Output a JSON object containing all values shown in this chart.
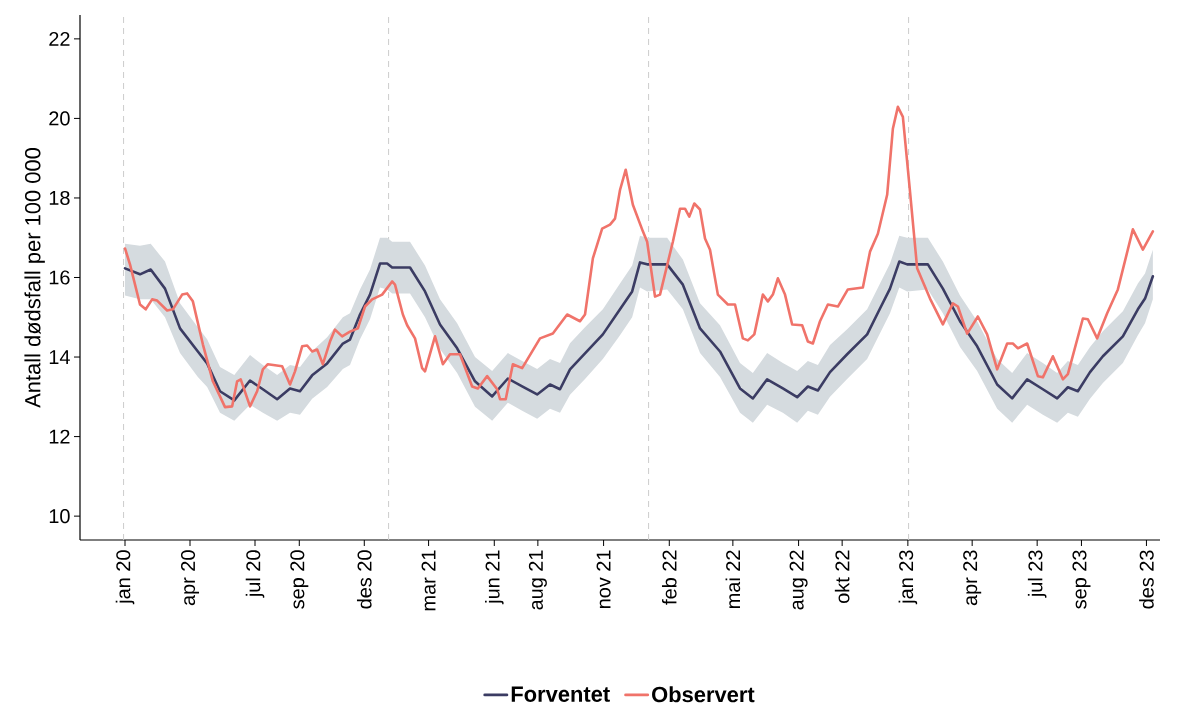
{
  "chart_data": {
    "type": "line",
    "ylabel": "Antall dødsfall per 100 000",
    "xlim": [
      "2019-10-30",
      "2023-12-20"
    ],
    "ylim": [
      9.4,
      22.6
    ],
    "yticks": [
      10,
      12,
      14,
      16,
      18,
      20,
      22
    ],
    "xticks": [
      {
        "value": "2020-01",
        "label": "jan 20"
      },
      {
        "value": "2020-04",
        "label": "apr 20"
      },
      {
        "value": "2020-07",
        "label": "jul 20"
      },
      {
        "value": "2020-09",
        "label": "sep 20"
      },
      {
        "value": "2020-12",
        "label": "des 20"
      },
      {
        "value": "2021-03",
        "label": "mar 21"
      },
      {
        "value": "2021-06",
        "label": "jun 21"
      },
      {
        "value": "2021-08",
        "label": "aug 21"
      },
      {
        "value": "2021-11",
        "label": "nov 21"
      },
      {
        "value": "2022-02",
        "label": "feb 22"
      },
      {
        "value": "2022-05",
        "label": "mai 22"
      },
      {
        "value": "2022-08",
        "label": "aug 22"
      },
      {
        "value": "2022-10",
        "label": "okt 22"
      },
      {
        "value": "2023-01",
        "label": "jan 23"
      },
      {
        "value": "2023-04",
        "label": "apr 23"
      },
      {
        "value": "2023-07",
        "label": "jul 23"
      },
      {
        "value": "2023-09",
        "label": "sep 23"
      },
      {
        "value": "2023-12",
        "label": "des 23"
      }
    ],
    "ref_lines": [
      {
        "axis": "x",
        "value": "2019-12-30",
        "color": "#cccccc",
        "line_style": "dashed"
      },
      {
        "axis": "x",
        "value": "2021-01-04",
        "color": "#cccccc",
        "line_style": "dashed"
      },
      {
        "axis": "x",
        "value": "2022-01-03",
        "color": "#cccccc",
        "line_style": "dashed"
      },
      {
        "axis": "x",
        "value": "2023-01-02",
        "color": "#cccccc",
        "line_style": "dashed"
      }
    ],
    "grid": false,
    "legend": "bottom",
    "line_style": "solid",
    "marker": "none",
    "series": [
      {
        "name": "Forventet",
        "color": "#3b3c63",
        "x": [
          "2020-01-01",
          "2020-01-22",
          "2020-02-06",
          "2020-02-26",
          "2020-03-18",
          "2020-04-12",
          "2020-04-25",
          "2020-05-13",
          "2020-06-02",
          "2020-06-24",
          "2020-07-12",
          "2020-08-01",
          "2020-08-19",
          "2020-09-02",
          "2020-09-19",
          "2020-10-10",
          "2020-11-01",
          "2020-11-11",
          "2020-11-25",
          "2020-12-09",
          "2020-12-23",
          "2021-01-02",
          "2021-01-09",
          "2021-02-03",
          "2021-02-24",
          "2021-03-17",
          "2021-04-10",
          "2021-05-05",
          "2021-05-29",
          "2021-06-20",
          "2021-07-10",
          "2021-07-31",
          "2021-08-18",
          "2021-09-01",
          "2021-09-15",
          "2021-10-06",
          "2021-10-31",
          "2021-11-24",
          "2021-12-11",
          "2021-12-22",
          "2022-01-01",
          "2022-01-29",
          "2022-02-20",
          "2022-03-16",
          "2022-04-13",
          "2022-05-11",
          "2022-05-29",
          "2022-06-18",
          "2022-07-10",
          "2022-07-30",
          "2022-08-14",
          "2022-08-28",
          "2022-09-14",
          "2022-10-08",
          "2022-11-05",
          "2022-11-23",
          "2022-12-07",
          "2022-12-20",
          "2022-12-31",
          "2023-01-29",
          "2023-02-19",
          "2023-03-15",
          "2023-04-08",
          "2023-05-06",
          "2023-05-27",
          "2023-06-17",
          "2023-07-09",
          "2023-07-29",
          "2023-08-13",
          "2023-08-27",
          "2023-09-13",
          "2023-10-01",
          "2023-10-29",
          "2023-11-19",
          "2023-11-29",
          "2023-12-10"
        ],
        "values": [
          16.23,
          16.08,
          16.2,
          15.72,
          14.72,
          14.14,
          13.84,
          13.14,
          12.91,
          13.41,
          13.19,
          12.94,
          13.21,
          13.14,
          13.54,
          13.84,
          14.34,
          14.44,
          15.07,
          15.57,
          16.35,
          16.35,
          16.25,
          16.25,
          15.65,
          14.82,
          14.22,
          13.39,
          13.01,
          13.46,
          13.26,
          13.06,
          13.31,
          13.19,
          13.69,
          14.09,
          14.57,
          15.2,
          15.65,
          16.38,
          16.33,
          16.33,
          15.82,
          14.72,
          14.14,
          13.21,
          12.96,
          13.44,
          13.21,
          12.99,
          13.26,
          13.16,
          13.62,
          14.07,
          14.57,
          15.22,
          15.72,
          16.4,
          16.33,
          16.33,
          15.72,
          14.9,
          14.27,
          13.31,
          12.96,
          13.44,
          13.19,
          12.96,
          13.24,
          13.14,
          13.62,
          14.02,
          14.52,
          15.2,
          15.47,
          16.03
        ],
        "upper": [
          16.85,
          16.8,
          16.85,
          16.4,
          15.35,
          14.75,
          14.45,
          13.75,
          13.55,
          14.05,
          13.8,
          13.55,
          13.8,
          13.75,
          14.15,
          14.5,
          15.0,
          15.1,
          15.7,
          16.2,
          17.0,
          17.0,
          16.9,
          16.9,
          16.3,
          15.45,
          14.85,
          14.0,
          13.65,
          14.1,
          13.9,
          13.7,
          13.95,
          13.85,
          14.35,
          14.75,
          15.2,
          15.85,
          16.3,
          17.05,
          17.0,
          17.0,
          16.45,
          15.35,
          14.8,
          13.85,
          13.6,
          14.1,
          13.85,
          13.65,
          13.9,
          13.8,
          14.3,
          14.7,
          15.2,
          15.85,
          16.35,
          17.05,
          17.0,
          17.0,
          16.4,
          15.55,
          14.9,
          13.95,
          13.6,
          14.1,
          13.85,
          13.6,
          13.9,
          13.8,
          14.25,
          14.65,
          15.15,
          15.85,
          16.1,
          16.7
        ],
        "lower": [
          15.55,
          15.45,
          15.45,
          15.0,
          14.1,
          13.5,
          13.25,
          12.6,
          12.4,
          12.8,
          12.6,
          12.4,
          12.6,
          12.55,
          12.95,
          13.25,
          13.7,
          13.8,
          14.45,
          14.95,
          15.75,
          15.7,
          15.6,
          15.6,
          15.0,
          14.2,
          13.6,
          12.75,
          12.4,
          12.85,
          12.65,
          12.45,
          12.7,
          12.6,
          13.05,
          13.45,
          13.95,
          14.55,
          15.0,
          15.75,
          15.65,
          15.7,
          15.2,
          14.1,
          13.5,
          12.6,
          12.35,
          12.8,
          12.6,
          12.35,
          12.65,
          12.55,
          13.0,
          13.45,
          13.95,
          14.6,
          15.1,
          15.75,
          15.65,
          15.7,
          15.1,
          14.25,
          13.65,
          12.7,
          12.35,
          12.8,
          12.55,
          12.35,
          12.6,
          12.5,
          12.95,
          13.35,
          13.85,
          14.55,
          14.85,
          15.45
        ]
      },
      {
        "name": "Observert",
        "color": "#f0736a",
        "x": [
          "2020-01-01",
          "2020-01-08",
          "2020-01-22",
          "2020-01-30",
          "2020-02-08",
          "2020-02-15",
          "2020-02-29",
          "2020-03-08",
          "2020-03-21",
          "2020-03-28",
          "2020-04-05",
          "2020-04-19",
          "2020-05-03",
          "2020-05-13",
          "2020-05-20",
          "2020-05-30",
          "2020-06-06",
          "2020-06-11",
          "2020-06-24",
          "2020-07-04",
          "2020-07-12",
          "2020-07-19",
          "2020-08-08",
          "2020-08-19",
          "2020-08-26",
          "2020-09-05",
          "2020-09-12",
          "2020-09-19",
          "2020-09-26",
          "2020-10-04",
          "2020-10-14",
          "2020-10-21",
          "2020-10-31",
          "2020-11-11",
          "2020-11-22",
          "2020-12-02",
          "2020-12-12",
          "2020-12-26",
          "2021-01-09",
          "2021-01-13",
          "2021-01-24",
          "2021-01-30",
          "2021-02-10",
          "2021-02-20",
          "2021-02-24",
          "2021-03-10",
          "2021-03-21",
          "2021-03-31",
          "2021-04-14",
          "2021-05-01",
          "2021-05-09",
          "2021-05-22",
          "2021-06-05",
          "2021-06-09",
          "2021-06-17",
          "2021-06-27",
          "2021-07-10",
          "2021-08-04",
          "2021-08-22",
          "2021-09-11",
          "2021-09-29",
          "2021-10-06",
          "2021-10-17",
          "2021-10-30",
          "2021-11-10",
          "2021-11-17",
          "2021-11-24",
          "2021-12-02",
          "2021-12-12",
          "2021-12-26",
          "2022-01-01",
          "2022-01-12",
          "2022-01-19",
          "2022-02-06",
          "2022-02-16",
          "2022-02-23",
          "2022-03-01",
          "2022-03-08",
          "2022-03-16",
          "2022-03-23",
          "2022-03-30",
          "2022-04-10",
          "2022-04-24",
          "2022-05-04",
          "2022-05-15",
          "2022-05-22",
          "2022-05-31",
          "2022-06-12",
          "2022-06-19",
          "2022-06-26",
          "2022-07-03",
          "2022-07-13",
          "2022-07-23",
          "2022-08-06",
          "2022-08-14",
          "2022-08-21",
          "2022-08-31",
          "2022-09-11",
          "2022-09-25",
          "2022-10-09",
          "2022-10-30",
          "2022-11-09",
          "2022-11-20",
          "2022-12-03",
          "2022-12-11",
          "2022-12-18",
          "2022-12-25",
          "2023-01-04",
          "2023-01-14",
          "2023-02-01",
          "2023-02-19",
          "2023-03-05",
          "2023-03-12",
          "2023-03-25",
          "2023-04-09",
          "2023-04-22",
          "2023-05-06",
          "2023-05-20",
          "2023-05-28",
          "2023-06-04",
          "2023-06-17",
          "2023-07-02",
          "2023-07-09",
          "2023-07-23",
          "2023-08-06",
          "2023-08-13",
          "2023-09-03",
          "2023-09-10",
          "2023-09-23",
          "2023-10-07",
          "2023-10-22",
          "2023-11-12",
          "2023-11-26",
          "2023-12-10"
        ],
        "values": [
          16.73,
          16.33,
          15.32,
          15.2,
          15.45,
          15.42,
          15.17,
          15.2,
          15.57,
          15.6,
          15.4,
          14.32,
          13.39,
          13.01,
          12.74,
          12.76,
          13.39,
          13.44,
          12.76,
          13.14,
          13.69,
          13.82,
          13.77,
          13.31,
          13.64,
          14.27,
          14.29,
          14.14,
          14.19,
          13.82,
          14.39,
          14.69,
          14.52,
          14.64,
          14.72,
          15.27,
          15.45,
          15.57,
          15.9,
          15.82,
          15.07,
          14.8,
          14.47,
          13.72,
          13.64,
          14.52,
          13.82,
          14.07,
          14.07,
          13.26,
          13.21,
          13.52,
          13.19,
          12.94,
          12.94,
          13.82,
          13.72,
          14.47,
          14.59,
          15.07,
          14.9,
          15.07,
          16.48,
          17.23,
          17.33,
          17.48,
          18.2,
          18.71,
          17.83,
          17.16,
          16.9,
          15.52,
          15.57,
          16.9,
          17.73,
          17.73,
          17.53,
          17.86,
          17.71,
          16.98,
          16.7,
          15.57,
          15.32,
          15.32,
          14.47,
          14.42,
          14.57,
          15.57,
          15.4,
          15.57,
          15.98,
          15.57,
          14.82,
          14.8,
          14.39,
          14.34,
          14.9,
          15.32,
          15.27,
          15.7,
          15.75,
          16.65,
          17.1,
          18.08,
          19.74,
          20.29,
          20.04,
          18.16,
          16.23,
          15.47,
          14.82,
          15.35,
          15.27,
          14.59,
          15.02,
          14.57,
          13.69,
          14.34,
          14.34,
          14.22,
          14.34,
          13.52,
          13.49,
          14.02,
          13.44,
          13.57,
          14.97,
          14.95,
          14.47,
          15.1,
          15.7,
          17.21,
          16.7,
          17.16
        ]
      }
    ]
  }
}
